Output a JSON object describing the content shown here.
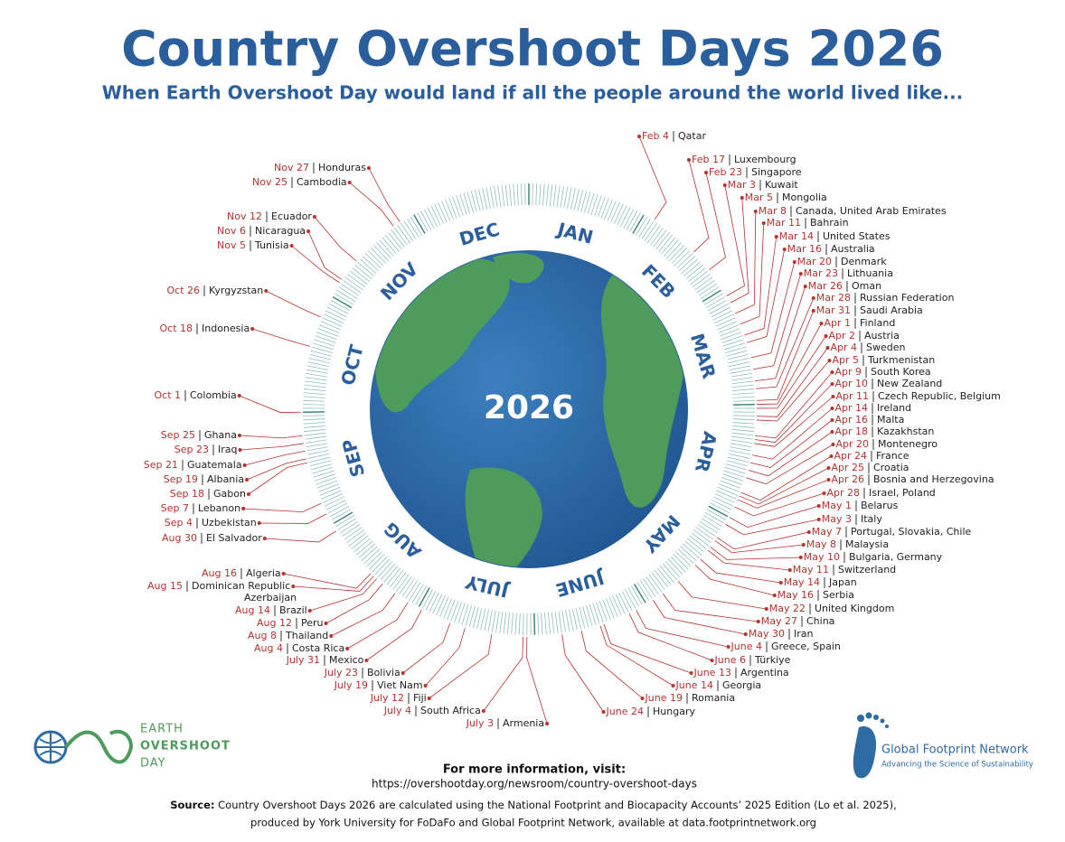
{
  "header": {
    "title": "Country Overshoot Days 2026",
    "subtitle": "When Earth Overshoot Day would land if all the people around the world lived like..."
  },
  "wheel": {
    "center_label": "2026",
    "months": [
      "JAN",
      "FEB",
      "MAR",
      "APR",
      "MAY",
      "JUNE",
      "JULY",
      "AUG",
      "SEP",
      "OCT",
      "NOV",
      "DEC"
    ]
  },
  "entries": [
    {
      "date": "Feb 4",
      "country": "Qatar"
    },
    {
      "date": "Feb 17",
      "country": "Luxembourg"
    },
    {
      "date": "Feb 23",
      "country": "Singapore"
    },
    {
      "date": "Mar 3",
      "country": "Kuwait"
    },
    {
      "date": "Mar 5",
      "country": "Mongolia"
    },
    {
      "date": "Mar 8",
      "country": "Canada, United Arab Emirates"
    },
    {
      "date": "Mar 11",
      "country": "Bahrain"
    },
    {
      "date": "Mar 14",
      "country": "United States"
    },
    {
      "date": "Mar 16",
      "country": "Australia"
    },
    {
      "date": "Mar 20",
      "country": "Denmark"
    },
    {
      "date": "Mar 23",
      "country": "Lithuania"
    },
    {
      "date": "Mar 26",
      "country": "Oman"
    },
    {
      "date": "Mar 28",
      "country": "Russian Federation"
    },
    {
      "date": "Mar 31",
      "country": "Saudi Arabia"
    },
    {
      "date": "Apr 1",
      "country": "Finland"
    },
    {
      "date": "Apr 2",
      "country": "Austria"
    },
    {
      "date": "Apr 4",
      "country": "Sweden"
    },
    {
      "date": "Apr 5",
      "country": "Turkmenistan"
    },
    {
      "date": "Apr 9",
      "country": "South Korea"
    },
    {
      "date": "Apr 10",
      "country": "New Zealand"
    },
    {
      "date": "Apr 11",
      "country": "Czech Republic, Belgium"
    },
    {
      "date": "Apr 14",
      "country": "Ireland"
    },
    {
      "date": "Apr 16",
      "country": "Malta"
    },
    {
      "date": "Apr 18",
      "country": "Kazakhstan"
    },
    {
      "date": "Apr 20",
      "country": "Montenegro"
    },
    {
      "date": "Apr 24",
      "country": "France"
    },
    {
      "date": "Apr 25",
      "country": "Croatia"
    },
    {
      "date": "Apr 26",
      "country": "Bosnia and Herzegovina"
    },
    {
      "date": "Apr 28",
      "country": "Israel, Poland"
    },
    {
      "date": "May 1",
      "country": "Belarus"
    },
    {
      "date": "May 3",
      "country": "Italy"
    },
    {
      "date": "May 7",
      "country": "Portugal, Slovakia, Chile"
    },
    {
      "date": "May 8",
      "country": "Malaysia"
    },
    {
      "date": "May 10",
      "country": "Bulgaria, Germany"
    },
    {
      "date": "May 11",
      "country": "Switzerland"
    },
    {
      "date": "May 14",
      "country": "Japan"
    },
    {
      "date": "May 16",
      "country": "Serbia"
    },
    {
      "date": "May 22",
      "country": "United Kingdom"
    },
    {
      "date": "May 27",
      "country": "China"
    },
    {
      "date": "May 30",
      "country": "Iran"
    },
    {
      "date": "June 4",
      "country": "Greece, Spain"
    },
    {
      "date": "June 6",
      "country": "Türkiye"
    },
    {
      "date": "June 13",
      "country": "Argentina"
    },
    {
      "date": "June 14",
      "country": "Georgia"
    },
    {
      "date": "June 19",
      "country": "Romania"
    },
    {
      "date": "June 24",
      "country": "Hungary"
    },
    {
      "date": "July 3",
      "country": "Armenia"
    },
    {
      "date": "July 4",
      "country": "South Africa"
    },
    {
      "date": "July 12",
      "country": "Fiji"
    },
    {
      "date": "July 19",
      "country": "Viet Nam"
    },
    {
      "date": "July 23",
      "country": "Bolivia"
    },
    {
      "date": "July 31",
      "country": "Mexico"
    },
    {
      "date": "Aug 4",
      "country": "Costa Rica"
    },
    {
      "date": "Aug 8",
      "country": "Thailand"
    },
    {
      "date": "Aug 12",
      "country": "Peru"
    },
    {
      "date": "Aug 14",
      "country": "Brazil"
    },
    {
      "date": "Aug 15",
      "country": "Dominican Republic",
      "country_line2": "Azerbaijan"
    },
    {
      "date": "Aug 16",
      "country": "Algeria"
    },
    {
      "date": "Aug 30",
      "country": "El Salvador"
    },
    {
      "date": "Sep 4",
      "country": "Uzbekistan"
    },
    {
      "date": "Sep 7",
      "country": "Lebanon"
    },
    {
      "date": "Sep 18",
      "country": "Gabon"
    },
    {
      "date": "Sep 19",
      "country": "Albania"
    },
    {
      "date": "Sep 21",
      "country": "Guatemala"
    },
    {
      "date": "Sep 23",
      "country": "Iraq"
    },
    {
      "date": "Sep 25",
      "country": "Ghana"
    },
    {
      "date": "Oct 1",
      "country": "Colombia"
    },
    {
      "date": "Oct 18",
      "country": "Indonesia"
    },
    {
      "date": "Oct 26",
      "country": "Kyrgyzstan"
    },
    {
      "date": "Nov 5",
      "country": "Tunisia"
    },
    {
      "date": "Nov 6",
      "country": "Nicaragua"
    },
    {
      "date": "Nov 12",
      "country": "Ecuador"
    },
    {
      "date": "Nov 25",
      "country": "Cambodia"
    },
    {
      "date": "Nov 27",
      "country": "Honduras"
    }
  ],
  "footer": {
    "logo_left": [
      "EARTH",
      "OVERSHOOT",
      "DAY"
    ],
    "info_heading": "For more information, visit:",
    "info_url": "https://overshootday.org/newsroom/country-overshoot-days",
    "source_label": "Source:",
    "source_lines": [
      "Country Overshoot Days 2026 are calculated using the National Footprint and Biocapacity Accounts’ 2025 Edition (Lo et al. 2025),",
      "produced by York University for FoDaFo and Global Footprint Network, available at data.footprintnetwork.org"
    ],
    "logo_right": "Global Footprint Network",
    "logo_right_tagline": "Advancing the Science of Sustainability"
  }
}
